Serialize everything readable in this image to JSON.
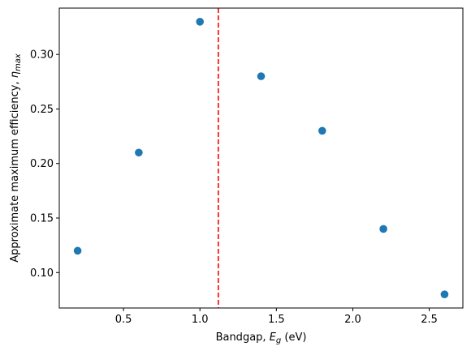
{
  "chart_data": {
    "type": "scatter",
    "x": [
      0.2,
      0.6,
      1.0,
      1.4,
      1.8,
      2.2,
      2.6
    ],
    "y": [
      0.12,
      0.21,
      0.33,
      0.28,
      0.23,
      0.14,
      0.08
    ],
    "xlim": [
      0.08,
      2.72
    ],
    "ylim": [
      0.0675,
      0.3425
    ],
    "xticks": [
      0.5,
      1.0,
      1.5,
      2.0,
      2.5
    ],
    "xtick_labels": [
      "0.5",
      "1.0",
      "1.5",
      "2.0",
      "2.5"
    ],
    "yticks": [
      0.1,
      0.15,
      0.2,
      0.25,
      0.3
    ],
    "ytick_labels": [
      "0.10",
      "0.15",
      "0.20",
      "0.25",
      "0.30"
    ],
    "xlabel": {
      "prefix": "Bandgap, ",
      "symbol": "E",
      "subscript": "g",
      "suffix": " (eV)"
    },
    "ylabel": {
      "prefix": "Approximate maximum efficiency, ",
      "symbol": "η",
      "subscript": "max"
    },
    "reference_line": {
      "orientation": "vertical",
      "x": 1.12,
      "color": "#ff0000",
      "style": "dashed"
    },
    "marker_color": "#1f77b4",
    "grid": false,
    "legend": "none"
  }
}
